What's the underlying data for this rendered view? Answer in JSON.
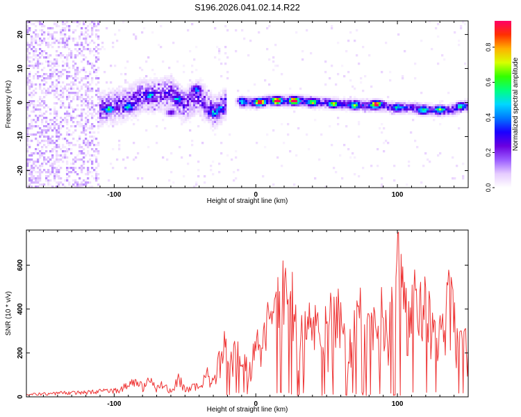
{
  "title": "S196.2026.041.02.14.R22",
  "chart_data": [
    {
      "type": "heatmap",
      "title": "S196.2026.041.02.14.R22",
      "xlabel": "Height of straight line (km)",
      "ylabel": "Frequency (Hz)",
      "xlim": [
        -162,
        150
      ],
      "ylim": [
        -25,
        24
      ],
      "x_ticks": [
        -100,
        0,
        100
      ],
      "y_ticks": [
        -20,
        -10,
        0,
        10,
        20
      ],
      "colorbar": {
        "label": "Normalized spectral amplitude",
        "range": [
          0,
          0.95
        ],
        "ticks": [
          0.0,
          0.2,
          0.4,
          0.6,
          0.8
        ],
        "colormap": [
          "#ffffff",
          "#e6ccff",
          "#9b5cff",
          "#6a00e0",
          "#1a00ff",
          "#0078ff",
          "#00d8ff",
          "#00ff80",
          "#33ff00",
          "#d8ff00",
          "#ffb000",
          "#ff3000",
          "#ff0066"
        ]
      },
      "ridge": {
        "x": [
          -110,
          -100,
          -90,
          -80,
          -70,
          -60,
          -50,
          -40,
          -30,
          -20,
          -10,
          0,
          10,
          20,
          30,
          40,
          50,
          60,
          70,
          80,
          90,
          100,
          110,
          120,
          130,
          140,
          148
        ],
        "freq": [
          -2,
          -1,
          0,
          2,
          2,
          3,
          -1,
          2,
          -3,
          0,
          0,
          0,
          0.5,
          0.5,
          0.5,
          0,
          0,
          -0.5,
          -0.5,
          -1,
          -1,
          -1.5,
          -1.5,
          -2,
          -2.5,
          -2,
          -1
        ]
      },
      "peaks": [
        {
          "x": 15,
          "freq": 0.5,
          "amplitude": 0.95
        },
        {
          "x": 27,
          "freq": 0.5,
          "amplitude": 0.9
        },
        {
          "x": 3,
          "freq": 0,
          "amplitude": 0.85
        },
        {
          "x": 85,
          "freq": -0.5,
          "amplitude": 0.85
        },
        {
          "x": 55,
          "freq": -0.5,
          "amplitude": 0.5
        },
        {
          "x": 40,
          "freq": 0,
          "amplitude": 0.5
        },
        {
          "x": 70,
          "freq": -1,
          "amplitude": 0.45
        },
        {
          "x": 130,
          "freq": -2,
          "amplitude": 0.45
        },
        {
          "x": 118,
          "freq": -2.5,
          "amplitude": 0.4
        },
        {
          "x": -104,
          "freq": -2,
          "amplitude": 0.4
        },
        {
          "x": -90,
          "freq": -1.5,
          "amplitude": 0.35
        },
        {
          "x": 145,
          "freq": -1,
          "amplitude": 0.35
        },
        {
          "x": -10,
          "freq": 0.5,
          "amplitude": 0.35
        },
        {
          "x": -75,
          "freq": 2,
          "amplitude": 0.3
        },
        {
          "x": -55,
          "freq": 1,
          "amplitude": 0.3
        },
        {
          "x": -42,
          "freq": 4,
          "amplitude": 0.3
        },
        {
          "x": -30,
          "freq": -3,
          "amplitude": 0.3
        },
        {
          "x": 100,
          "freq": -1.5,
          "amplitude": 0.3
        },
        {
          "x": -60,
          "freq": -3,
          "amplitude": 0.25
        },
        {
          "x": -25,
          "freq": -2,
          "amplitude": 0.25
        }
      ]
    },
    {
      "type": "line",
      "xlabel": "Height of straight line (km)",
      "ylabel": "SNR (10 * v/v)",
      "xlim": [
        -162,
        150
      ],
      "ylim": [
        0,
        760
      ],
      "x_ticks": [
        -100,
        0,
        100
      ],
      "y_ticks": [
        0,
        200,
        400,
        600
      ],
      "color": "#ee3333",
      "series": [
        {
          "name": "SNR",
          "x": [
            -162,
            -140,
            -120,
            -100,
            -90,
            -85,
            -80,
            -75,
            -70,
            -65,
            -60,
            -55,
            -50,
            -45,
            -40,
            -35,
            -30,
            -25,
            -22,
            -20,
            -15,
            -10,
            -5,
            0,
            5,
            8,
            10,
            15,
            18,
            20,
            22,
            25,
            28,
            30,
            35,
            40,
            45,
            50,
            55,
            60,
            65,
            70,
            75,
            80,
            85,
            90,
            95,
            100,
            105,
            110,
            115,
            120,
            125,
            130,
            135,
            140,
            145,
            150
          ],
          "values": [
            15,
            25,
            30,
            40,
            70,
            130,
            60,
            100,
            50,
            80,
            40,
            120,
            50,
            70,
            60,
            150,
            90,
            250,
            340,
            200,
            260,
            230,
            150,
            280,
            350,
            420,
            380,
            510,
            600,
            680,
            550,
            610,
            430,
            330,
            390,
            450,
            360,
            420,
            520,
            460,
            310,
            390,
            500,
            420,
            380,
            560,
            440,
            760,
            620,
            480,
            650,
            520,
            460,
            380,
            700,
            420,
            330,
            300
          ]
        }
      ]
    }
  ]
}
